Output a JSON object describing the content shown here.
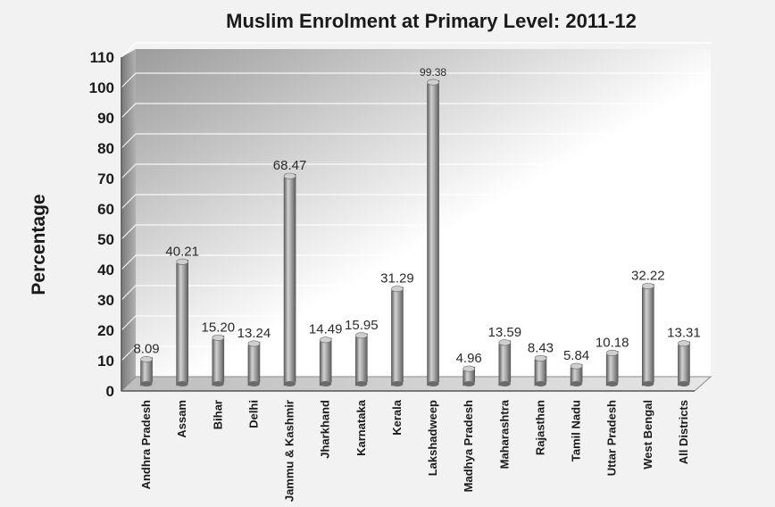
{
  "chart_data": {
    "type": "bar",
    "title": "Muslim Enrolment at Primary Level: 2011-12",
    "ylabel": "Percentage",
    "xlabel": "",
    "ylim": [
      0,
      110
    ],
    "yticks": [
      0,
      10,
      20,
      30,
      40,
      50,
      60,
      70,
      80,
      90,
      100,
      110
    ],
    "grid": true,
    "bar_style": "3d-cylinder",
    "colors": {
      "bar_light": "#c8c8c8",
      "bar_dark": "#5e5e5e",
      "wall_light": "#ffffff",
      "wall_dark": "#9c9c9c"
    },
    "categories": [
      "Andhra Pradesh",
      "Assam",
      "Bihar",
      "Delhi",
      "Jammu & Kashmir",
      "Jharkhand",
      "Karnataka",
      "Kerala",
      "Lakshadweep",
      "Madhya Pradesh",
      "Maharashtra",
      "Rajasthan",
      "Tamil Nadu",
      "Uttar Pradesh",
      "West Bengal",
      "All Districts"
    ],
    "values": [
      8.09,
      40.21,
      15.2,
      13.24,
      68.47,
      14.49,
      15.95,
      31.29,
      99.38,
      4.96,
      13.59,
      8.43,
      5.84,
      10.18,
      32.22,
      13.31
    ],
    "value_labels": [
      "8.09",
      "40.21",
      "15.20",
      "13.24",
      "68.47",
      "14.49",
      "15.95",
      "31.29",
      "99.38",
      "4.96",
      "13.59",
      "8.43",
      "5.84",
      "10.18",
      "32.22",
      "13.31"
    ]
  }
}
